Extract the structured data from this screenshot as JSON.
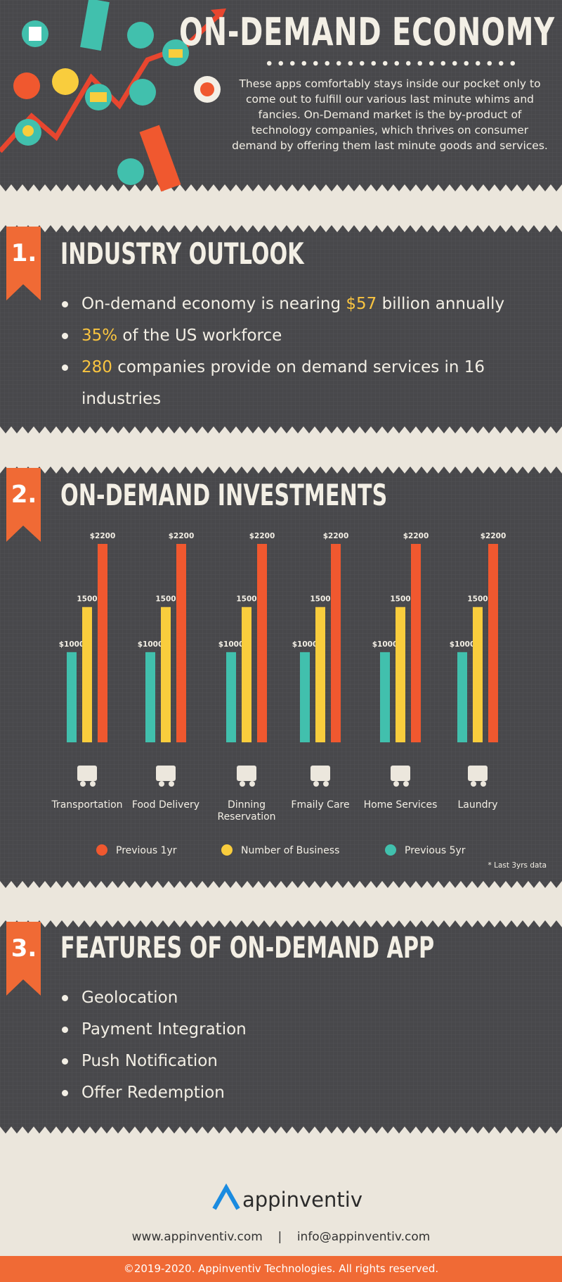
{
  "header": {
    "title": "ON-DEMAND ECONOMY",
    "description": "These apps comfortably stays inside our pocket only to come out to fulfill our various last minute whims and fancies. On-Demand market is the by-product of technology companies, which thrives on consumer demand by offering them last minute goods and services."
  },
  "sections": [
    {
      "number": "1.",
      "title": "INDUSTRY OUTLOOK",
      "bullets": [
        [
          "On-demand economy is nearing ",
          "$57",
          " billion annually"
        ],
        [
          "35%",
          " of the US workforce"
        ],
        [
          "280",
          " companies provide on demand services in 16 industries"
        ]
      ]
    },
    {
      "number": "2.",
      "title": "ON-DEMAND INVESTMENTS"
    },
    {
      "number": "3.",
      "title": "FEATURES OF ON-DEMAND APP",
      "bullets": [
        "Geolocation",
        "Payment Integration",
        "Push Notification",
        "Offer Redemption"
      ]
    }
  ],
  "chart_data": {
    "type": "bar",
    "categories": [
      "Transportation",
      "Food Delivery",
      "Dinning Reservation",
      "Fmaily Care",
      "Home Services",
      "Laundry"
    ],
    "series": [
      {
        "name": "Previous 1yr",
        "color": "#f0582f",
        "values": [
          2200,
          2200,
          2200,
          2200,
          2200,
          2200
        ],
        "value_labels": [
          "$2200",
          "$2200",
          "$2200",
          "$2200",
          "$2200",
          "$2200"
        ]
      },
      {
        "name": "Number of Business",
        "color": "#f9cd3d",
        "values": [
          1500,
          1500,
          1500,
          1500,
          1500,
          1500
        ]
      },
      {
        "name": "Previous 5yr",
        "color": "#41c0ad",
        "values": [
          1000,
          1000,
          1000,
          1000,
          1000,
          1000
        ],
        "value_labels": [
          "$1000",
          "$1000",
          "$1000",
          "$1000",
          "$1000",
          "$1000"
        ]
      }
    ],
    "note": "* Last 3yrs data"
  },
  "footer": {
    "brand": "appinventiv",
    "website": "www.appinventiv.com",
    "separator": "|",
    "email": "info@appinventiv.com",
    "copyright": "©2019-2020. Appinventiv Technologies. All rights reserved."
  }
}
